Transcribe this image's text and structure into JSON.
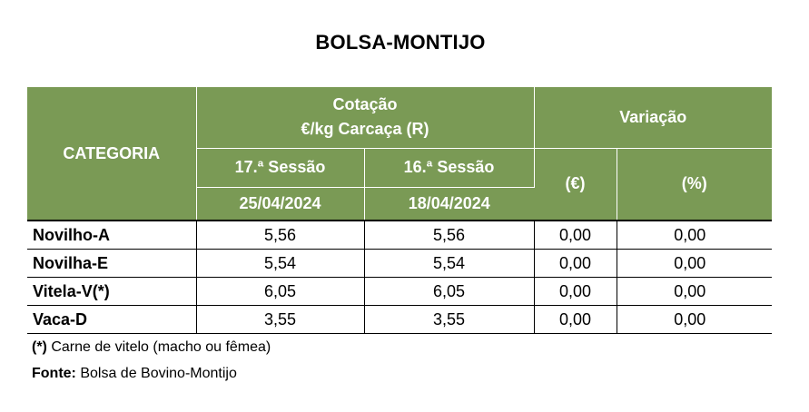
{
  "title": "BOLSA-MONTIJO",
  "table": {
    "header": {
      "categoria": "CATEGORIA",
      "cotacao_line1": "Cotação",
      "cotacao_line2": "€/kg Carcaça (R)",
      "variacao": "Variação",
      "session_a": "17.ª Sessão",
      "session_b": "16.ª Sessão",
      "date_a": "25/04/2024",
      "date_b": "18/04/2024",
      "var_eur": "(€)",
      "var_pct": "(%)"
    },
    "rows": [
      {
        "categoria": "Novilho-A",
        "sessao_17": "5,56",
        "sessao_16": "5,56",
        "var_eur": "0,00",
        "var_pct": "0,00"
      },
      {
        "categoria": "Novilha-E",
        "sessao_17": "5,54",
        "sessao_16": "5,54",
        "var_eur": "0,00",
        "var_pct": "0,00"
      },
      {
        "categoria": "Vitela-V(*)",
        "sessao_17": "6,05",
        "sessao_16": "6,05",
        "var_eur": "0,00",
        "var_pct": "0,00"
      },
      {
        "categoria": "Vaca-D",
        "sessao_17": "3,55",
        "sessao_16": "3,55",
        "var_eur": "0,00",
        "var_pct": "0,00"
      }
    ]
  },
  "footnotes": {
    "note_marker": "(*)",
    "note_text": " Carne de vitelo (macho ou fêmea)",
    "source_label": "Fonte:",
    "source_text": " Bolsa de Bovino-Montijo"
  }
}
